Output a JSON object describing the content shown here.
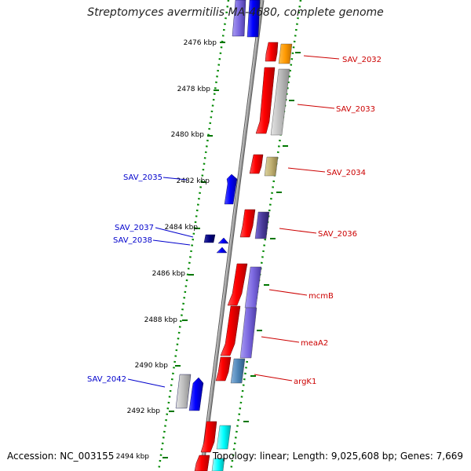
{
  "title": "Streptomyces avermitilis MA-4680, complete genome",
  "footer": {
    "accession": "Accession: NC_003155",
    "summary": "Topology: linear; Length: 9,025,608 bp; Genes: 7,669"
  },
  "ticks": [
    {
      "label": "2476 kbp"
    },
    {
      "label": "2478 kbp"
    },
    {
      "label": "2480 kbp"
    },
    {
      "label": "2482 kbp"
    },
    {
      "label": "2484 kbp"
    },
    {
      "label": "2486 kbp"
    },
    {
      "label": "2488 kbp"
    },
    {
      "label": "2490 kbp"
    },
    {
      "label": "2492 kbp"
    },
    {
      "label": "2494 kbp"
    }
  ],
  "gene_labels": {
    "right": [
      "SAV_2032",
      "SAV_2033",
      "SAV_2034",
      "SAV_2036",
      "mcmB",
      "meaA2",
      "argK1"
    ],
    "left": [
      "SAV_2035",
      "SAV_2037",
      "SAV_2038",
      "SAV_2042"
    ]
  },
  "colors": {
    "forward_gene": "#ff0000",
    "reverse_gene": "#0000ff",
    "right_label": "#cc0000",
    "left_label": "#0000cc",
    "tick": "#007700",
    "backbone": "#888888"
  }
}
